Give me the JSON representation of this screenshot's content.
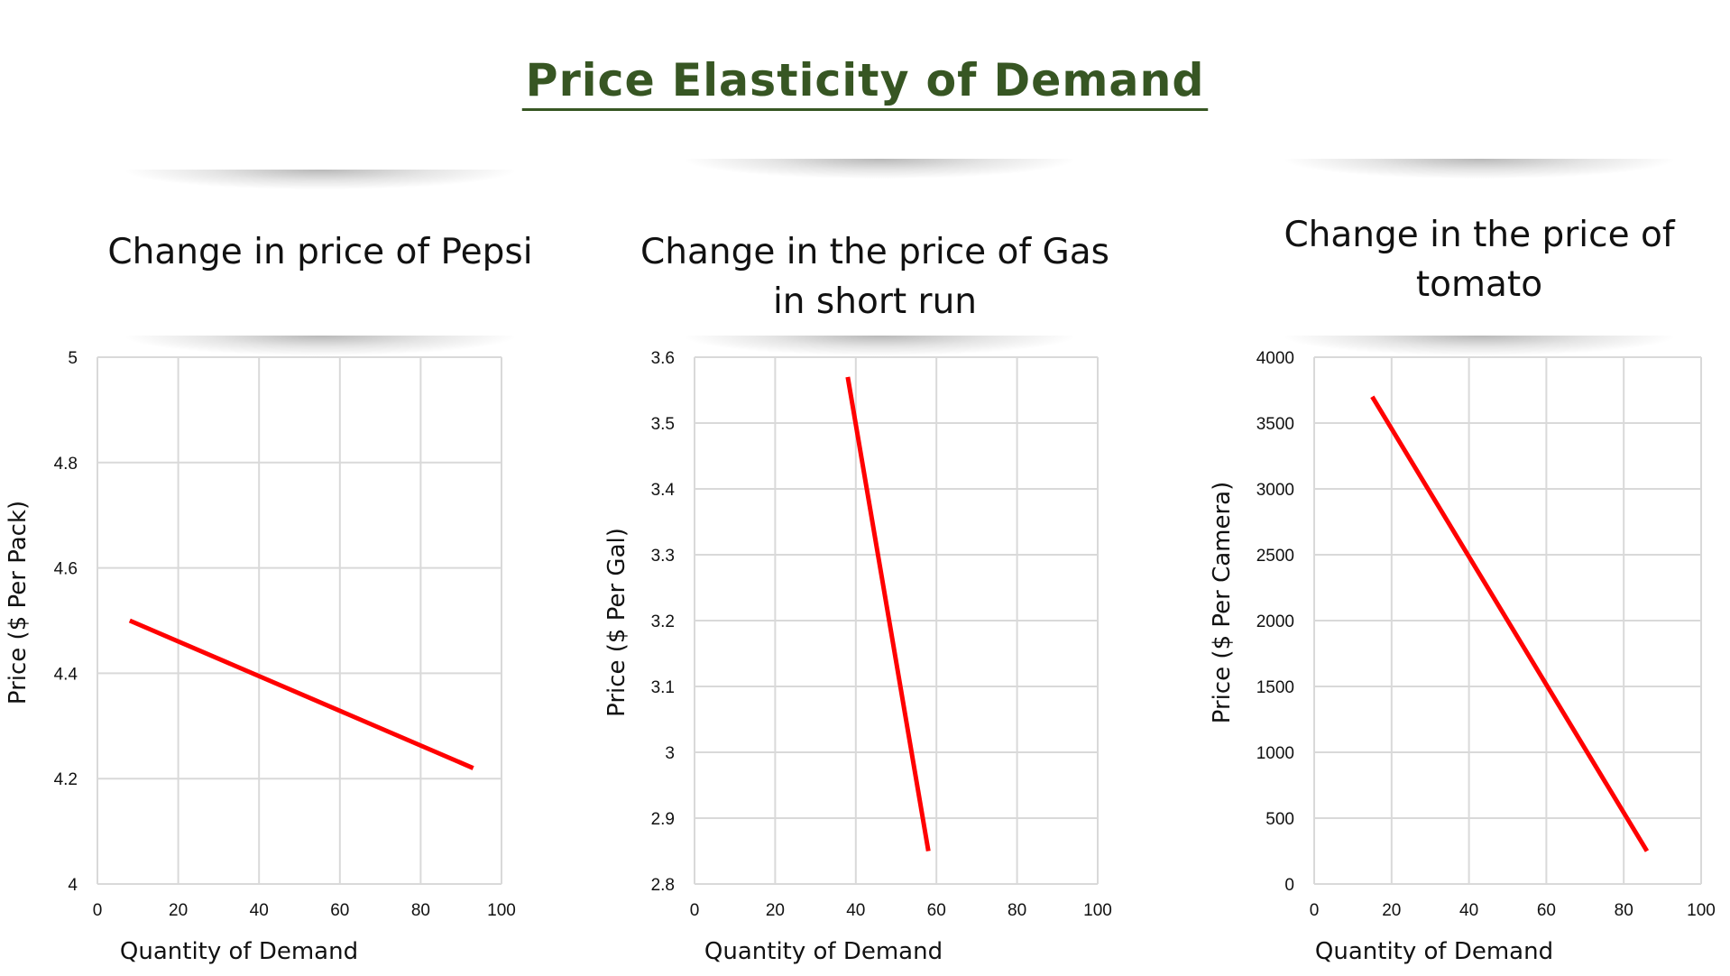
{
  "page_title": "Price Elasticity of Demand",
  "colors": {
    "title": "#375623",
    "series_line": "#ff0000",
    "grid": "#d9d9d9"
  },
  "charts": [
    {
      "title_lines": [
        "Change in price of Pepsi"
      ]
    },
    {
      "title_lines": [
        "Change in the price of Gas",
        "in short run"
      ]
    },
    {
      "title_lines": [
        "Change in the price of",
        "tomato"
      ]
    }
  ],
  "chart_data": [
    {
      "type": "line",
      "title": "Change in price of Pepsi",
      "xlabel": "Quantity of Demand",
      "ylabel": "Price ($ Per Pack)",
      "xlim": [
        0,
        100
      ],
      "ylim": [
        4,
        5
      ],
      "xticks": [
        "0",
        "20",
        "40",
        "60",
        "80",
        "100"
      ],
      "yticks": [
        "4",
        "4.2",
        "4.4",
        "4.6",
        "4.8",
        "5"
      ],
      "grid": true,
      "series": [
        {
          "x": [
            8,
            93
          ],
          "y": [
            4.5,
            4.22
          ]
        }
      ]
    },
    {
      "type": "line",
      "title": "Change in the price of Gas in short run",
      "xlabel": "Quantity of Demand",
      "ylabel": "Price ($ Per Gal)",
      "xlim": [
        0,
        100
      ],
      "ylim": [
        2.8,
        3.6
      ],
      "xticks": [
        "0",
        "20",
        "40",
        "60",
        "80",
        "100"
      ],
      "yticks": [
        "2.8",
        "2.9",
        "3",
        "3.1",
        "3.2",
        "3.3",
        "3.4",
        "3.5",
        "3.6"
      ],
      "grid": true,
      "series": [
        {
          "x": [
            38,
            58
          ],
          "y": [
            3.57,
            2.85
          ]
        }
      ]
    },
    {
      "type": "line",
      "title": "Change in the price of tomato",
      "xlabel": "Quantity of Demand",
      "ylabel": "Price ($ Per Camera)",
      "xlim": [
        0,
        100
      ],
      "ylim": [
        0,
        4000
      ],
      "xticks": [
        "0",
        "20",
        "40",
        "60",
        "80",
        "100"
      ],
      "yticks": [
        "0",
        "500",
        "1000",
        "1500",
        "2000",
        "2500",
        "3000",
        "3500",
        "4000"
      ],
      "grid": true,
      "series": [
        {
          "x": [
            15,
            86
          ],
          "y": [
            3700,
            250
          ]
        }
      ]
    }
  ]
}
